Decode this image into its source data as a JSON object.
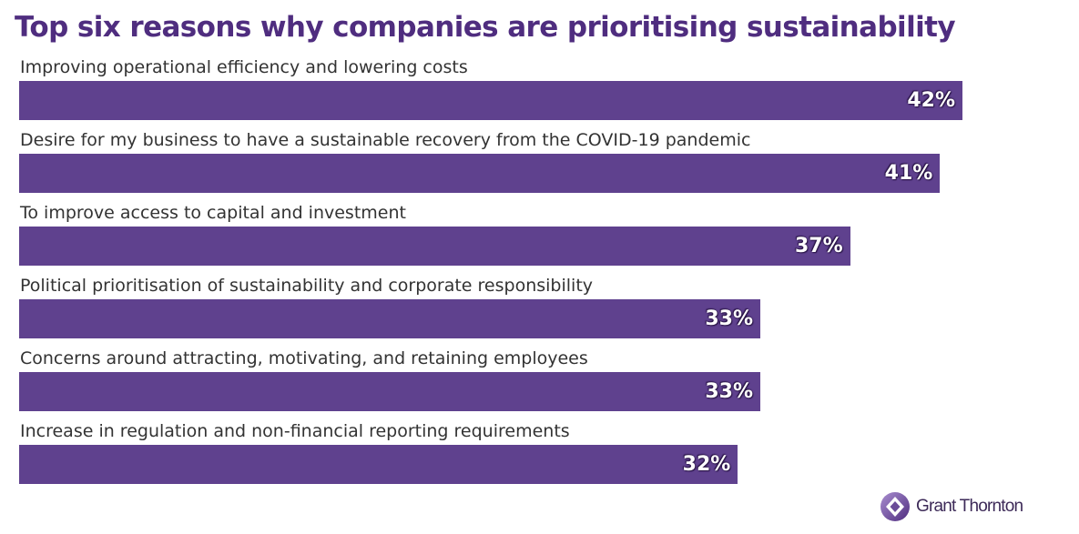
{
  "chart_data": {
    "type": "bar",
    "orientation": "horizontal",
    "title": "Top six reasons why companies are prioritising sustainability",
    "categories": [
      "Improving operational efficiency and lowering costs",
      "Desire for my business to have a sustainable recovery from the COVID-19 pandemic",
      "To improve access to capital and investment",
      "Political prioritisation of sustainability and corporate responsibility",
      "Concerns around attracting, motivating, and retaining employees",
      "Increase in regulation and non-financial reporting requirements"
    ],
    "values": [
      42,
      41,
      37,
      33,
      33,
      32
    ],
    "value_labels": [
      "42%",
      "41%",
      "37%",
      "33%",
      "33%",
      "32%"
    ],
    "unit": "%",
    "xlim": [
      0,
      42
    ],
    "bar_color": "#5f418e"
  },
  "branding": {
    "logo_text": "Grant Thornton",
    "title_color": "#4f2d7f"
  }
}
